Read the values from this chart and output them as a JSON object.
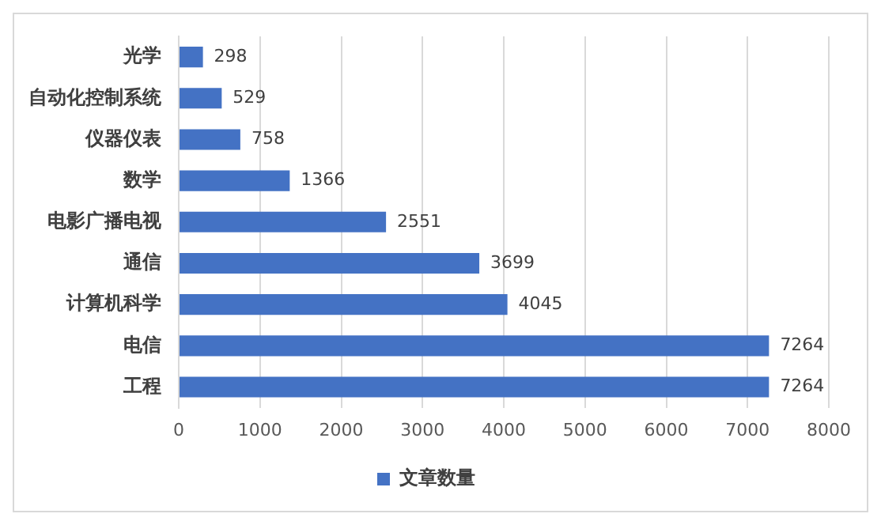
{
  "chart_data": {
    "type": "bar",
    "orientation": "horizontal",
    "categories": [
      "光学",
      "自动化控制系统",
      "仪器仪表",
      "数学",
      "电影广播电视",
      "通信",
      "计算机科学",
      "电信",
      "工程"
    ],
    "series": [
      {
        "name": "文章数量",
        "color": "#4472c4",
        "values": [
          298,
          529,
          758,
          1366,
          2551,
          3699,
          4045,
          7264,
          7264
        ]
      }
    ],
    "xlim": [
      0,
      8000
    ],
    "xticks": [
      0,
      1000,
      2000,
      3000,
      4000,
      5000,
      6000,
      7000,
      8000
    ],
    "grid": "x",
    "legend": "bottom",
    "data_labels": true
  }
}
